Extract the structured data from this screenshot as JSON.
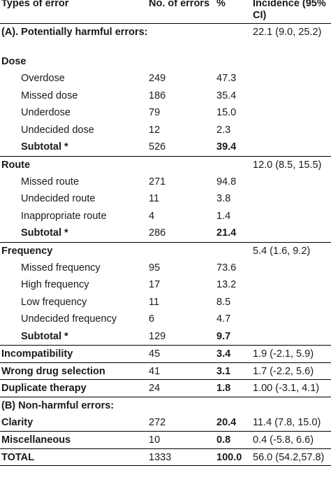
{
  "headers": [
    "Types of error",
    "No. of errors",
    "%",
    "Incidence (95% CI)"
  ],
  "rows": [
    {
      "type": "section",
      "label": "(A). Potentially harmful errors:",
      "count": "",
      "pct": "",
      "inc": "22.1 (9.0, 25.2)",
      "sep": true
    },
    {
      "type": "category",
      "label": "Dose",
      "count": "",
      "pct": "",
      "inc": ""
    },
    {
      "type": "item",
      "label": "Overdose",
      "count": "249",
      "pct": "47.3",
      "inc": ""
    },
    {
      "type": "item",
      "label": "Missed dose",
      "count": "186",
      "pct": "35.4",
      "inc": ""
    },
    {
      "type": "item",
      "label": "Underdose",
      "count": "79",
      "pct": "15.0",
      "inc": ""
    },
    {
      "type": "item",
      "label": "Undecided dose",
      "count": "12",
      "pct": "2.3",
      "inc": ""
    },
    {
      "type": "subtotal",
      "label": "Subtotal *",
      "count": "526",
      "pct": "39.4",
      "inc": ""
    },
    {
      "type": "category",
      "label": "Route",
      "count": "",
      "pct": "",
      "inc": "12.0 (8.5, 15.5)",
      "sep": true
    },
    {
      "type": "item",
      "label": "Missed route",
      "count": "271",
      "pct": "94.8",
      "inc": ""
    },
    {
      "type": "item",
      "label": "Undecided route",
      "count": "11",
      "pct": "3.8",
      "inc": ""
    },
    {
      "type": "item",
      "label": "Inappropriate route",
      "count": "4",
      "pct": "1.4",
      "inc": ""
    },
    {
      "type": "subtotal",
      "label": "Subtotal *",
      "count": "286",
      "pct": "21.4",
      "inc": ""
    },
    {
      "type": "category",
      "label": "Frequency",
      "count": "",
      "pct": "",
      "inc": "5.4 (1.6, 9.2)",
      "sep": true
    },
    {
      "type": "item",
      "label": "Missed frequency",
      "count": "95",
      "pct": "73.6",
      "inc": ""
    },
    {
      "type": "item",
      "label": "High frequency",
      "count": "17",
      "pct": "13.2",
      "inc": ""
    },
    {
      "type": "item",
      "label": "Low frequency",
      "count": "11",
      "pct": "8.5",
      "inc": ""
    },
    {
      "type": "item",
      "label": "Undecided frequency",
      "count": "6",
      "pct": "4.7",
      "inc": ""
    },
    {
      "type": "subtotal",
      "label": "Subtotal *",
      "count": "129",
      "pct": "9.7",
      "inc": ""
    },
    {
      "type": "category",
      "label": "Incompatibility",
      "count": "45",
      "pct": "3.4",
      "inc": "1.9 (-2.1, 5.9)",
      "sep": true
    },
    {
      "type": "category",
      "label": "Wrong drug selection",
      "count": "41",
      "pct": "3.1",
      "inc": "1.7 (-2.2, 5.6)",
      "sep": true
    },
    {
      "type": "category",
      "label": "Duplicate therapy",
      "count": "24",
      "pct": "1.8",
      "inc": "1.00 (-3.1, 4.1)",
      "sep": true
    },
    {
      "type": "category",
      "label": "(B) Non-harmful errors:",
      "count": "",
      "pct": "",
      "inc": "",
      "sep": true
    },
    {
      "type": "category",
      "label": "Clarity",
      "count": "272",
      "pct": "20.4",
      "inc": "11.4 (7.8, 15.0)"
    },
    {
      "type": "category",
      "label": "Miscellaneous",
      "count": "10",
      "pct": "0.8",
      "inc": "0.4 (-5.8, 6.6)",
      "sep": true
    },
    {
      "type": "category",
      "label": "TOTAL",
      "count": "1333",
      "pct": "100.0",
      "inc": "56.0 (54.2,57.8)",
      "sep": true,
      "last": true
    }
  ]
}
